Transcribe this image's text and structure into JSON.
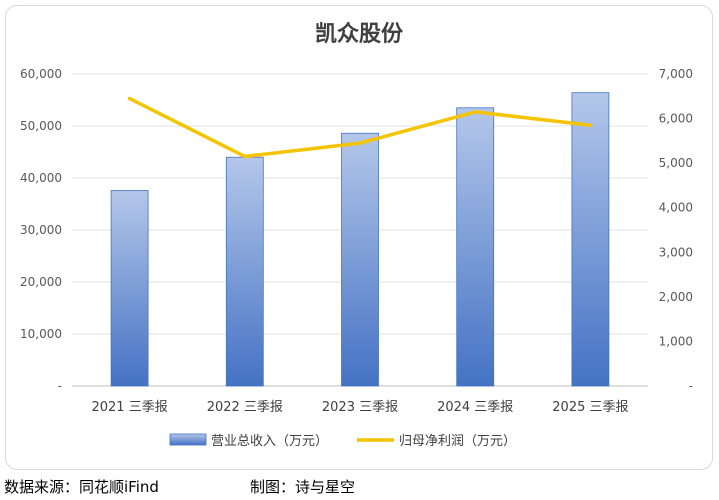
{
  "chart_data": {
    "type": "bar",
    "title": "凯众股份",
    "categories": [
      "2021 三季报",
      "2022 三季报",
      "2023 三季报",
      "2024 三季报",
      "2025 三季报"
    ],
    "series": [
      {
        "name": "营业总收入（万元）",
        "type": "bar",
        "axis": "left",
        "color": "#4472c4",
        "values": [
          37600,
          44000,
          48600,
          53500,
          56400
        ]
      },
      {
        "name": "归母净利润（万元）",
        "type": "line",
        "axis": "right",
        "color": "#f5c400",
        "values": [
          6450,
          5150,
          5450,
          6150,
          5850
        ]
      }
    ],
    "y_left": {
      "min": 0,
      "max": 60000,
      "step": 10000,
      "ticks": [
        "-",
        "10,000",
        "20,000",
        "30,000",
        "40,000",
        "50,000",
        "60,000"
      ]
    },
    "y_right": {
      "min": 0,
      "max": 7000,
      "step": 1000,
      "ticks": [
        "-",
        "1,000",
        "2,000",
        "3,000",
        "4,000",
        "5,000",
        "6,000",
        "7,000"
      ]
    },
    "grid": true,
    "legend_position": "bottom"
  },
  "footer": {
    "source": "数据来源：同花顺iFind",
    "maker": "制图：诗与星空"
  }
}
